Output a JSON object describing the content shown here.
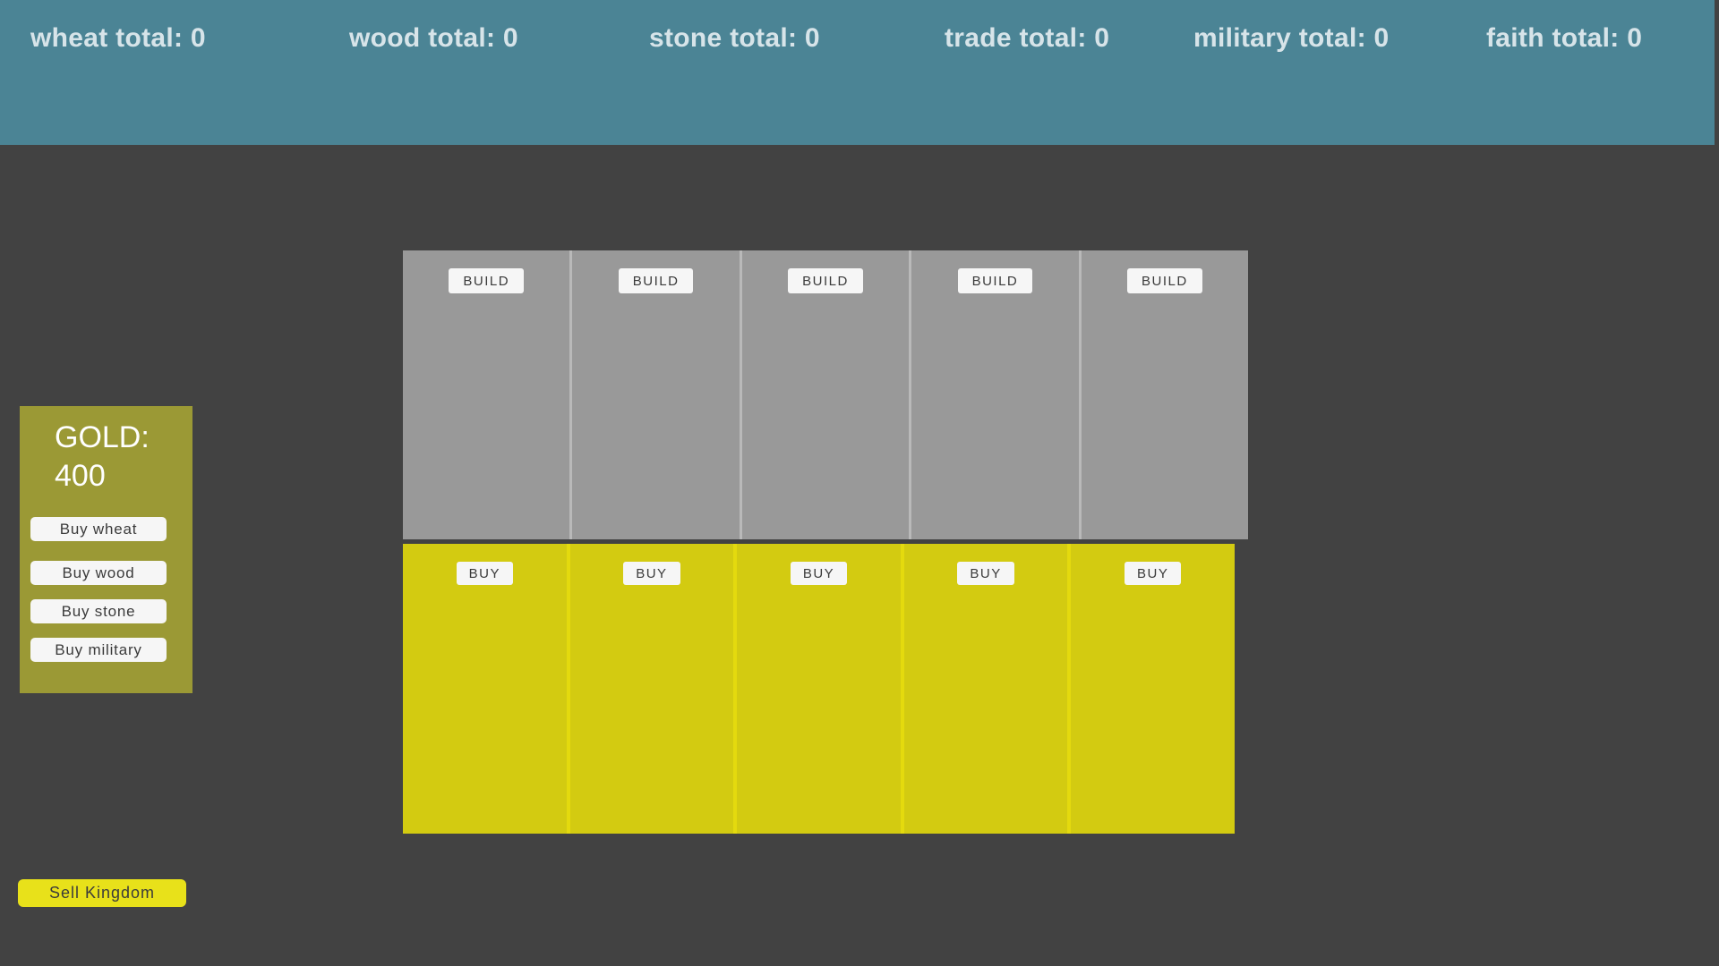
{
  "resources_bar": {
    "items": [
      "wheat total: 0",
      "wood total: 0",
      "stone total: 0",
      "trade total: 0",
      "military total: 0",
      "faith total: 0"
    ]
  },
  "gold_panel": {
    "title_label": "GOLD:",
    "gold_amount": "400",
    "buttons": [
      "Buy wheat",
      "Buy wood",
      "Buy stone",
      "Buy military"
    ]
  },
  "build_row": {
    "button_label": "BUILD",
    "slot_count": 5
  },
  "buy_row": {
    "button_label": "BUY",
    "slot_count": 5
  },
  "sell_button": {
    "label": "Sell Kingdom"
  },
  "colors": {
    "page_bg": "#424242",
    "bar_teal": "#4b8495",
    "bar_text": "#d7e4e9",
    "card_gray": "#999999",
    "card_gray_backing": "#b9b9b9",
    "card_yellow": "#d3cb11",
    "card_yellow_backing": "#e4da0e",
    "olive_panel": "#9b9935",
    "bright_yellow": "#e8e11a",
    "button_white": "#f6f6f6",
    "button_text": "#3b3b3b"
  }
}
